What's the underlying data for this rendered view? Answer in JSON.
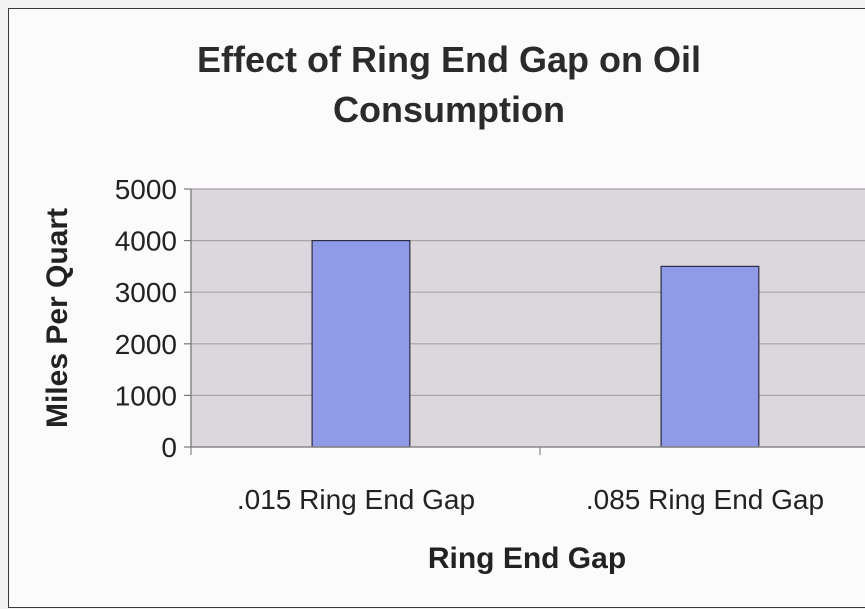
{
  "chart_data": {
    "type": "bar",
    "title_lines": [
      "Effect of Ring End Gap on Oil",
      "Consumption"
    ],
    "categories": [
      ".015 Ring End Gap",
      ".085 Ring End Gap"
    ],
    "values": [
      4000,
      3500
    ],
    "xlabel": "Ring End Gap",
    "ylabel": "Miles Per Quart",
    "ylim": [
      0,
      5000
    ],
    "yticks": [
      "0",
      "1000",
      "2000",
      "3000",
      "4000",
      "5000"
    ],
    "grid": true,
    "colors": {
      "bar_fill": "#8f9be6",
      "bar_stroke": "#2c2c44",
      "plot_background": "#dcd7dc",
      "gridline": "#a8a4a8"
    }
  }
}
